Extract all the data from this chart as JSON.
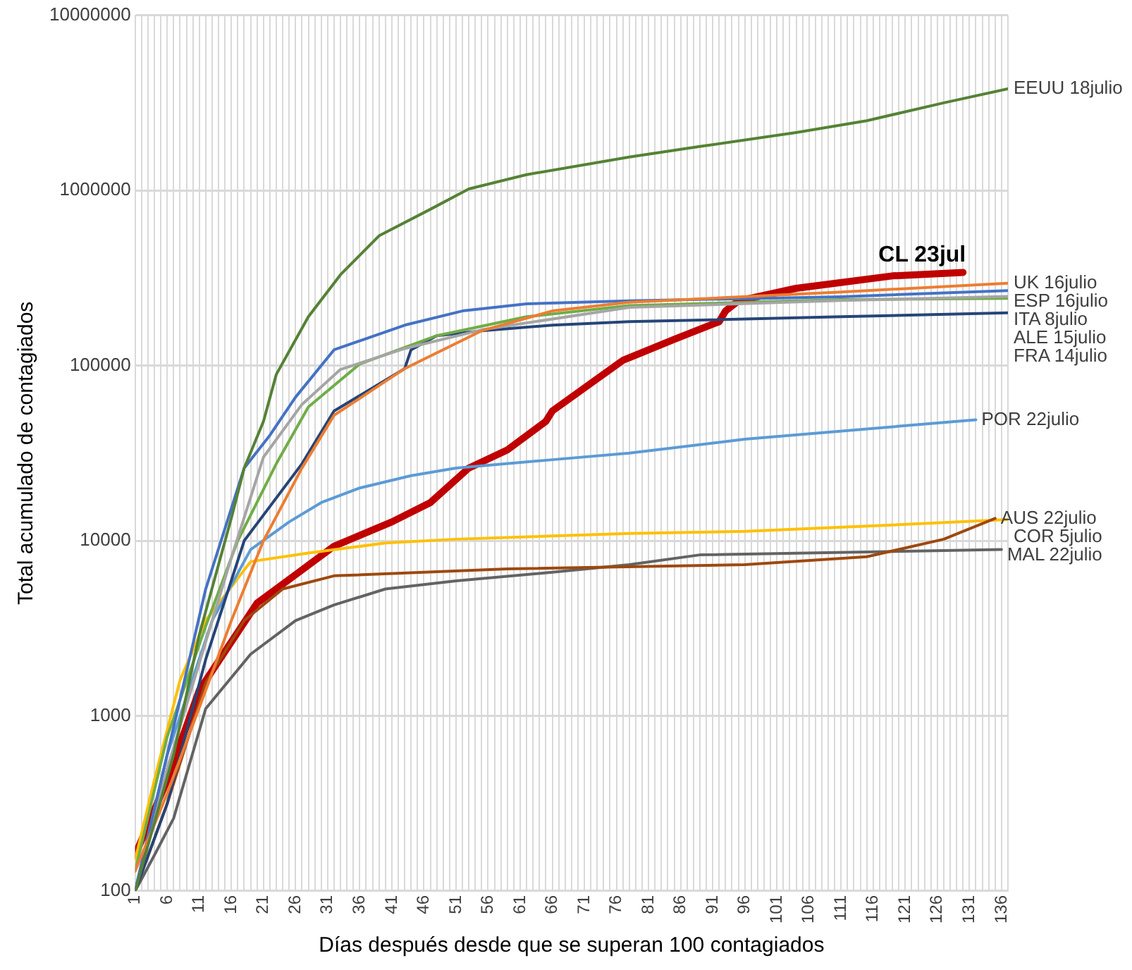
{
  "chart_data": {
    "type": "line",
    "xlabel": "Días después desde que se superan 100 contagiados",
    "ylabel": "Total acumulado de contagiados",
    "log": "y",
    "grid": true,
    "legend": false,
    "marker": "none",
    "line_style": "solid",
    "xlim": [
      1,
      137
    ],
    "ylim": [
      100,
      10000000
    ],
    "yticks": [
      100,
      1000,
      10000,
      100000,
      1000000,
      10000000
    ],
    "xticks": [
      1,
      {
        "value": 2,
        "label": null
      },
      {
        "value": 3,
        "label": null
      },
      {
        "value": 4,
        "label": null
      },
      {
        "value": 5,
        "label": null
      },
      6,
      {
        "value": 7,
        "label": null
      },
      {
        "value": 8,
        "label": null
      },
      {
        "value": 9,
        "label": null
      },
      {
        "value": 10,
        "label": null
      },
      11,
      {
        "value": 12,
        "label": null
      },
      {
        "value": 13,
        "label": null
      },
      {
        "value": 14,
        "label": null
      },
      {
        "value": 15,
        "label": null
      },
      16,
      {
        "value": 17,
        "label": null
      },
      {
        "value": 18,
        "label": null
      },
      {
        "value": 19,
        "label": null
      },
      {
        "value": 20,
        "label": null
      },
      21,
      {
        "value": 22,
        "label": null
      },
      {
        "value": 23,
        "label": null
      },
      {
        "value": 24,
        "label": null
      },
      {
        "value": 25,
        "label": null
      },
      26,
      {
        "value": 27,
        "label": null
      },
      {
        "value": 28,
        "label": null
      },
      {
        "value": 29,
        "label": null
      },
      {
        "value": 30,
        "label": null
      },
      31,
      {
        "value": 32,
        "label": null
      },
      {
        "value": 33,
        "label": null
      },
      {
        "value": 34,
        "label": null
      },
      {
        "value": 35,
        "label": null
      },
      36,
      {
        "value": 37,
        "label": null
      },
      {
        "value": 38,
        "label": null
      },
      {
        "value": 39,
        "label": null
      },
      {
        "value": 40,
        "label": null
      },
      41,
      {
        "value": 42,
        "label": null
      },
      {
        "value": 43,
        "label": null
      },
      {
        "value": 44,
        "label": null
      },
      {
        "value": 45,
        "label": null
      },
      46,
      {
        "value": 47,
        "label": null
      },
      {
        "value": 48,
        "label": null
      },
      {
        "value": 49,
        "label": null
      },
      {
        "value": 50,
        "label": null
      },
      51,
      {
        "value": 52,
        "label": null
      },
      {
        "value": 53,
        "label": null
      },
      {
        "value": 54,
        "label": null
      },
      {
        "value": 55,
        "label": null
      },
      56,
      {
        "value": 57,
        "label": null
      },
      {
        "value": 58,
        "label": null
      },
      {
        "value": 59,
        "label": null
      },
      {
        "value": 60,
        "label": null
      },
      61,
      {
        "value": 62,
        "label": null
      },
      {
        "value": 63,
        "label": null
      },
      {
        "value": 64,
        "label": null
      },
      {
        "value": 65,
        "label": null
      },
      66,
      {
        "value": 67,
        "label": null
      },
      {
        "value": 68,
        "label": null
      },
      {
        "value": 69,
        "label": null
      },
      {
        "value": 70,
        "label": null
      },
      71,
      {
        "value": 72,
        "label": null
      },
      {
        "value": 73,
        "label": null
      },
      {
        "value": 74,
        "label": null
      },
      {
        "value": 75,
        "label": null
      },
      76,
      {
        "value": 77,
        "label": null
      },
      {
        "value": 78,
        "label": null
      },
      {
        "value": 79,
        "label": null
      },
      {
        "value": 80,
        "label": null
      },
      81,
      {
        "value": 82,
        "label": null
      },
      {
        "value": 83,
        "label": null
      },
      {
        "value": 84,
        "label": null
      },
      {
        "value": 85,
        "label": null
      },
      86,
      {
        "value": 87,
        "label": null
      },
      {
        "value": 88,
        "label": null
      },
      {
        "value": 89,
        "label": null
      },
      {
        "value": 90,
        "label": null
      },
      91,
      {
        "value": 92,
        "label": null
      },
      {
        "value": 93,
        "label": null
      },
      {
        "value": 94,
        "label": null
      },
      {
        "value": 95,
        "label": null
      },
      96,
      {
        "value": 97,
        "label": null
      },
      {
        "value": 98,
        "label": null
      },
      {
        "value": 99,
        "label": null
      },
      {
        "value": 100,
        "label": null
      },
      101,
      {
        "value": 102,
        "label": null
      },
      {
        "value": 103,
        "label": null
      },
      {
        "value": 104,
        "label": null
      },
      {
        "value": 105,
        "label": null
      },
      106,
      {
        "value": 107,
        "label": null
      },
      {
        "value": 108,
        "label": null
      },
      {
        "value": 109,
        "label": null
      },
      {
        "value": 110,
        "label": null
      },
      111,
      {
        "value": 112,
        "label": null
      },
      {
        "value": 113,
        "label": null
      },
      {
        "value": 114,
        "label": null
      },
      {
        "value": 115,
        "label": null
      },
      116,
      {
        "value": 117,
        "label": null
      },
      {
        "value": 118,
        "label": null
      },
      {
        "value": 119,
        "label": null
      },
      {
        "value": 120,
        "label": null
      },
      121,
      {
        "value": 122,
        "label": null
      },
      {
        "value": 123,
        "label": null
      },
      {
        "value": 124,
        "label": null
      },
      {
        "value": 125,
        "label": null
      },
      126,
      {
        "value": 127,
        "label": null
      },
      {
        "value": 128,
        "label": null
      },
      {
        "value": 129,
        "label": null
      },
      {
        "value": 130,
        "label": null
      },
      131,
      {
        "value": 132,
        "label": null
      },
      {
        "value": 133,
        "label": null
      },
      {
        "value": 134,
        "label": null
      },
      {
        "value": 135,
        "label": null
      },
      136,
      {
        "value": 137,
        "label": null
      }
    ],
    "annotations": [
      {
        "text": "CL 23jul",
        "x": 130,
        "y": 340000
      }
    ],
    "series": [
      {
        "name": "EEUU 18julio",
        "color": "#548235",
        "x": [
          1,
          7,
          11,
          16,
          18,
          21,
          23,
          28,
          33,
          39,
          47,
          53,
          62,
          78,
          89,
          104,
          115,
          127,
          137
        ],
        "values": [
          100,
          600,
          2900,
          13500,
          26000,
          48000,
          89000,
          190000,
          330000,
          550000,
          780000,
          1020000,
          1230000,
          1550000,
          1780000,
          2140000,
          2500000,
          3160000,
          3800000
        ]
      },
      {
        "name": "UK 16julio",
        "color": "#ed7d31",
        "x": [
          1,
          6,
          12,
          16,
          21,
          27,
          32,
          43,
          55,
          66,
          78,
          111,
          137
        ],
        "values": [
          130,
          360,
          1400,
          3500,
          10000,
          26000,
          52000,
          96000,
          158000,
          205000,
          230000,
          263000,
          295000
        ]
      },
      {
        "name": "ESP 16julio",
        "color": "#4472c4",
        "x": [
          1,
          6,
          12,
          18,
          22,
          26,
          32,
          43,
          52,
          62,
          78,
          111,
          137
        ],
        "values": [
          100,
          600,
          5300,
          26000,
          40000,
          66000,
          123000,
          170000,
          205000,
          225000,
          234000,
          247000,
          268000
        ]
      },
      {
        "name": "ITA 8julio",
        "color": "#a5a5a5",
        "x": [
          1,
          6,
          11,
          16,
          21,
          27,
          33,
          43,
          55,
          78,
          111,
          137
        ],
        "values": [
          100,
          500,
          2000,
          8000,
          30000,
          60000,
          95000,
          125000,
          160000,
          215000,
          235000,
          248000
        ]
      },
      {
        "name": "ALE 15julio",
        "color": "#70ad47",
        "x": [
          1,
          6,
          12,
          17,
          23,
          28,
          36,
          48,
          62,
          78,
          111,
          137
        ],
        "values": [
          130,
          760,
          3250,
          10000,
          27500,
          58000,
          102000,
          148000,
          190000,
          220000,
          238000,
          242000
        ]
      },
      {
        "name": "FRA 14julio",
        "color": "#264478",
        "x": [
          1,
          6,
          12,
          18,
          27,
          32,
          43,
          44,
          48,
          55,
          66,
          78,
          111,
          137
        ],
        "values": [
          100,
          315,
          2100,
          10000,
          27500,
          55000,
          96000,
          123000,
          148000,
          158000,
          170000,
          178000,
          190000,
          200000
        ]
      },
      {
        "name": "POR 22julio",
        "color": "#5b9bd5",
        "x": [
          1,
          6,
          13,
          19,
          25,
          30,
          36,
          44,
          51,
          66,
          78,
          96,
          132
        ],
        "values": [
          100,
          600,
          3500,
          8900,
          12800,
          16500,
          20000,
          23500,
          26000,
          29000,
          31600,
          38000,
          49000
        ]
      },
      {
        "name": "AUS 22julio",
        "color": "#9e480e",
        "x": [
          1,
          6,
          12,
          18,
          24,
          32,
          59,
          96,
          115,
          127,
          135
        ],
        "values": [
          100,
          315,
          1550,
          3500,
          5300,
          6300,
          6900,
          7300,
          8100,
          10200,
          13400
        ]
      },
      {
        "name": "COR 5julio",
        "color": "#ffc000",
        "x": [
          1,
          4,
          8,
          12,
          19,
          28,
          40,
          51,
          78,
          96,
          119,
          137
        ],
        "values": [
          150,
          430,
          1600,
          3500,
          7600,
          8500,
          9700,
          10200,
          11000,
          11300,
          12300,
          13200
        ]
      },
      {
        "name": "MAL 22julio",
        "color": "#636363",
        "x": [
          1,
          4,
          7,
          12,
          19,
          26,
          32,
          40,
          51,
          66,
          78,
          89,
          136
        ],
        "values": [
          100,
          160,
          260,
          1100,
          2250,
          3500,
          4300,
          5300,
          5900,
          6600,
          7300,
          8300,
          8900
        ]
      },
      {
        "color": "#c00000",
        "x": [
          1,
          6,
          11,
          20,
          26,
          32,
          41,
          47,
          53,
          59,
          65,
          66,
          77,
          85,
          92,
          93,
          95,
          104,
          119,
          130
        ],
        "values": [
          160,
          430,
          1400,
          4400,
          6400,
          9300,
          12800,
          16500,
          26000,
          33000,
          48000,
          55000,
          107000,
          141000,
          178000,
          205000,
          234000,
          276000,
          325000,
          340000
        ]
      }
    ]
  }
}
